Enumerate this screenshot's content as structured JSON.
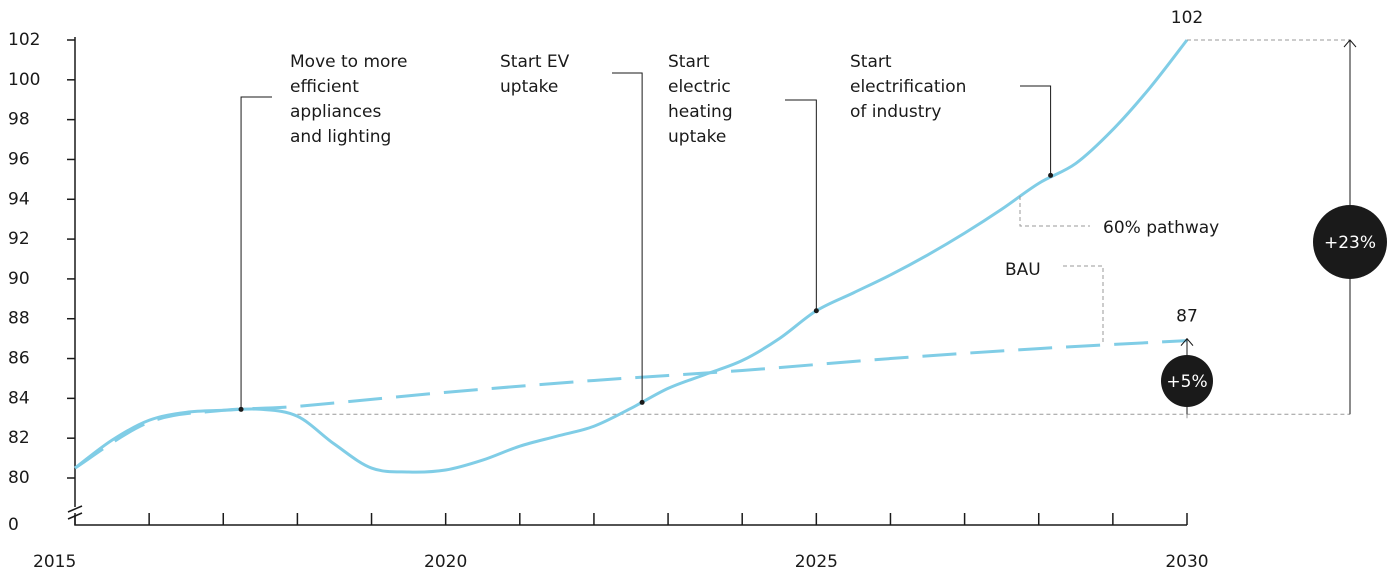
{
  "chart_data": {
    "type": "line",
    "xlim": [
      2015,
      2030
    ],
    "xticks": [
      2015,
      2020,
      2025,
      2030
    ],
    "xminor_ticks": [
      2016,
      2017,
      2018,
      2019,
      2021,
      2022,
      2023,
      2024,
      2026,
      2027,
      2028,
      2029
    ],
    "ylim": [
      80,
      102
    ],
    "yticks": [
      0,
      80,
      82,
      84,
      86,
      88,
      90,
      92,
      94,
      96,
      98,
      100,
      102
    ],
    "y_break": [
      0,
      80
    ],
    "series": [
      {
        "name": "60% pathway",
        "color": "#80cde6",
        "style": "solid",
        "x": [
          2015,
          2015.5,
          2016,
          2016.5,
          2017,
          2017.5,
          2018,
          2018.5,
          2019,
          2019.5,
          2020,
          2020.5,
          2021,
          2021.5,
          2022,
          2022.5,
          2023,
          2023.5,
          2024,
          2024.5,
          2025,
          2025.5,
          2026,
          2026.5,
          2027,
          2027.5,
          2028,
          2028.5,
          2029,
          2029.5,
          2030
        ],
        "values": [
          80.5,
          81.9,
          82.9,
          83.3,
          83.4,
          83.45,
          83.1,
          81.7,
          80.5,
          80.3,
          80.4,
          80.9,
          81.6,
          82.1,
          82.6,
          83.5,
          84.5,
          85.2,
          85.9,
          87.0,
          88.4,
          89.3,
          90.2,
          91.2,
          92.3,
          93.5,
          94.8,
          95.8,
          97.5,
          99.6,
          102
        ]
      },
      {
        "name": "BAU",
        "color": "#80cde6",
        "style": "dashed",
        "x": [
          2015,
          2016,
          2017,
          2018,
          2020,
          2022,
          2024,
          2026,
          2028,
          2030
        ],
        "values": [
          80.5,
          82.8,
          83.4,
          83.6,
          84.3,
          84.9,
          85.4,
          86.0,
          86.5,
          86.9
        ]
      }
    ],
    "end_labels": [
      102,
      87
    ],
    "reference_line": 83.2,
    "changes": [
      "+23%",
      "+5%"
    ],
    "annotations": [
      {
        "label_lines": [
          "Move to more",
          "efficient",
          "appliances",
          "and lighting"
        ],
        "x": 2017.24,
        "y": 83.45
      },
      {
        "label_lines": [
          "Start EV",
          "uptake"
        ],
        "x": 2022.65,
        "y": 83.8
      },
      {
        "label_lines": [
          "Start",
          "electric",
          "heating",
          "uptake"
        ],
        "x": 2025,
        "y": 88.4
      },
      {
        "label_lines": [
          "Start",
          "electrification",
          "of industry"
        ],
        "x": 2028.16,
        "y": 95.2
      }
    ]
  }
}
